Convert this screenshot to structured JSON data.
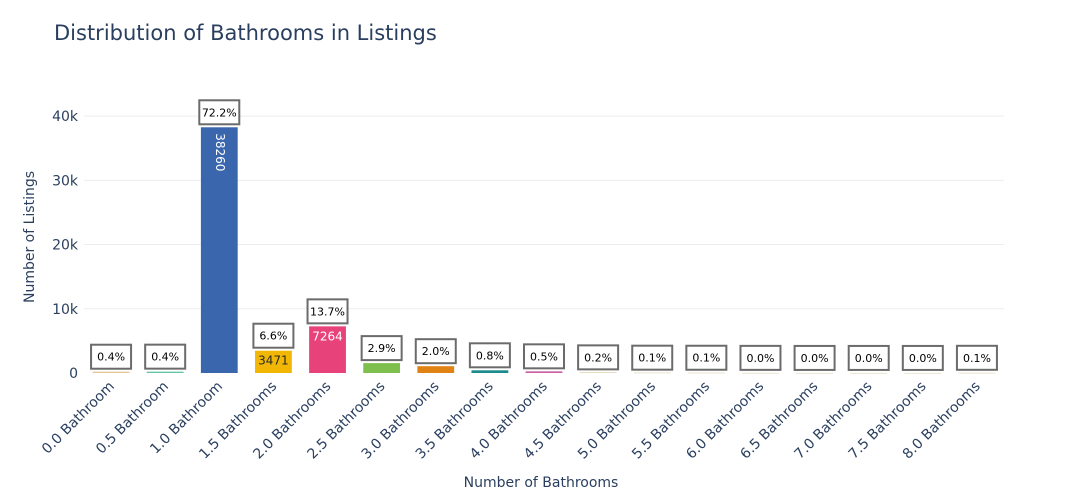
{
  "chart_data": {
    "type": "bar",
    "title": "Distribution of Bathrooms in Listings",
    "xlabel": "Number of Bathrooms",
    "ylabel": "Number of Listings",
    "ylim": [
      0,
      45000
    ],
    "yticks": [
      0,
      10000,
      20000,
      30000,
      40000
    ],
    "ytick_labels": [
      "0",
      "10k",
      "20k",
      "30k",
      "40k"
    ],
    "grid": true,
    "legend": "none",
    "categories": [
      "0.0 Bathroom",
      "0.5 Bathroom",
      "1.0 Bathroom",
      "1.5 Bathrooms",
      "2.0 Bathrooms",
      "2.5 Bathrooms",
      "3.0 Bathrooms",
      "3.5 Bathrooms",
      "4.0 Bathrooms",
      "4.5 Bathrooms",
      "5.0 Bathrooms",
      "5.5 Bathrooms",
      "6.0 Bathrooms",
      "6.5 Bathrooms",
      "7.0 Bathrooms",
      "7.5 Bathrooms",
      "8.0 Bathrooms"
    ],
    "values": [
      200,
      210,
      38260,
      3471,
      7264,
      1540,
      1060,
      420,
      260,
      100,
      50,
      40,
      20,
      10,
      10,
      10,
      30
    ],
    "value_labels": [
      "",
      "",
      "38260",
      "3471",
      "7264",
      "",
      "",
      "",
      "",
      "",
      "",
      "",
      "",
      "",
      "",
      "",
      ""
    ],
    "percent_labels": [
      "0.4%",
      "0.4%",
      "72.2%",
      "6.6%",
      "13.7%",
      "2.9%",
      "2.0%",
      "0.8%",
      "0.5%",
      "0.2%",
      "0.1%",
      "0.1%",
      "0.0%",
      "0.0%",
      "0.0%",
      "0.0%",
      "0.1%"
    ],
    "colors": [
      "#e5c494",
      "#66c2a5",
      "#3a66ad",
      "#f2b705",
      "#e8427a",
      "#7fbf4d",
      "#e08214",
      "#1b8b8b",
      "#cc5fa0",
      "#d8c8a0",
      "#d8c8a0",
      "#d8c8a0",
      "#d8c8a0",
      "#d8c8a0",
      "#d8c8a0",
      "#d8c8a0",
      "#d8c8a0"
    ],
    "label_colors": [
      "#000000",
      "#000000",
      "#ffffff",
      "#2a2a2a",
      "#ffffff",
      "#000000",
      "#000000",
      "#000000",
      "#000000",
      "#000000",
      "#000000",
      "#000000",
      "#000000",
      "#000000",
      "#000000",
      "#000000",
      "#000000"
    ]
  }
}
